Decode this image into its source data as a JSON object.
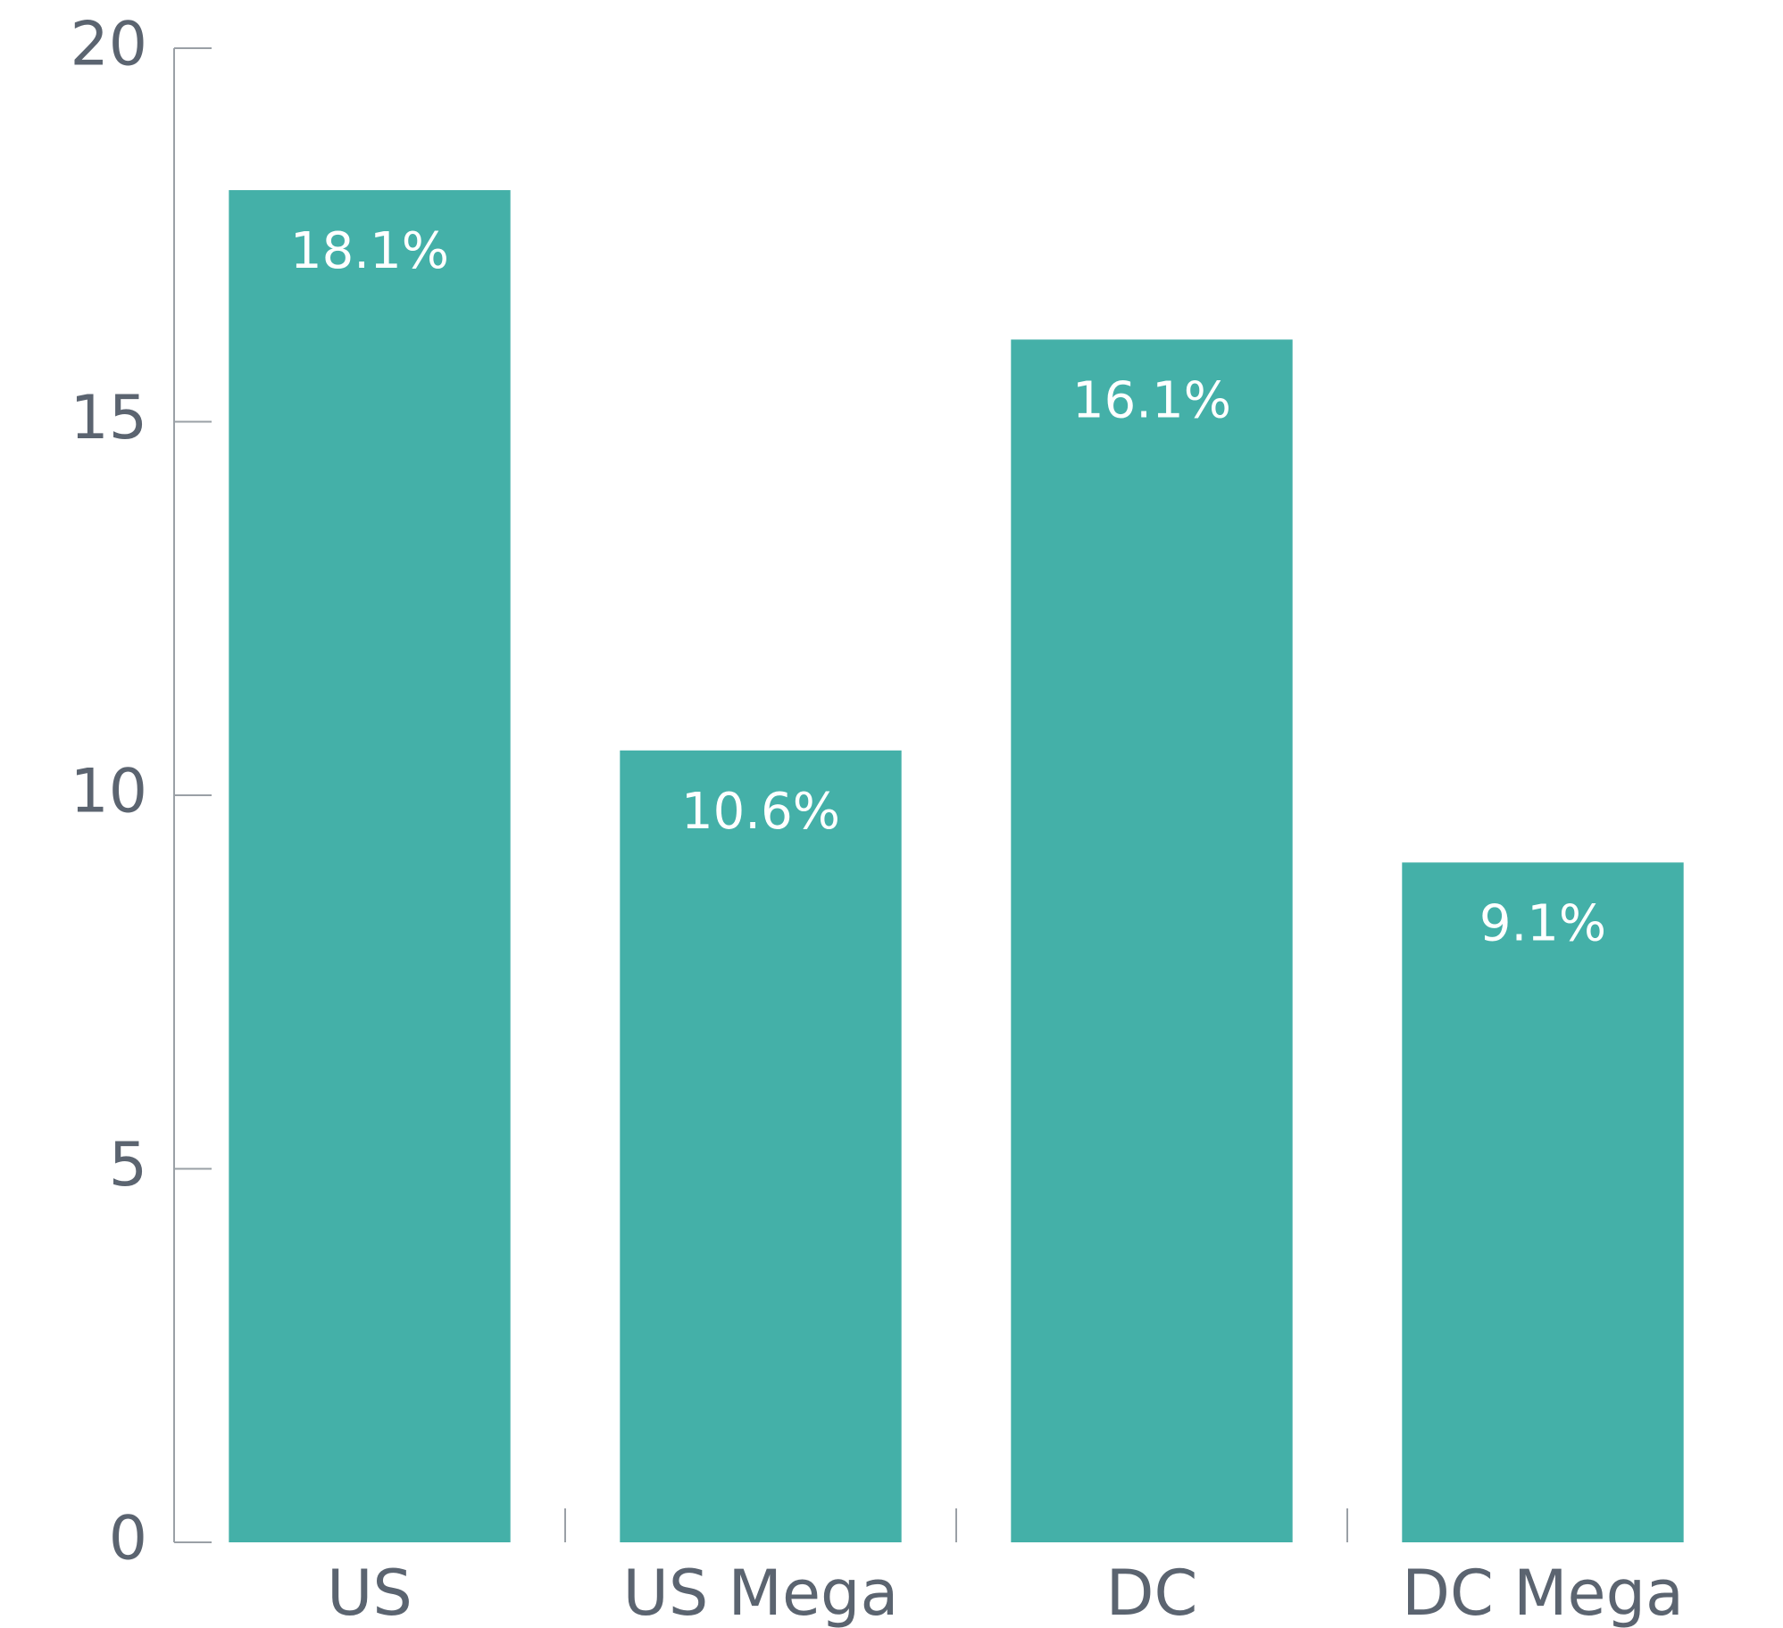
{
  "chart_data": {
    "type": "bar",
    "categories": [
      "US",
      "US Mega",
      "DC",
      "DC Mega"
    ],
    "values": [
      18.1,
      10.6,
      16.1,
      9.1
    ],
    "value_labels": [
      "18.1%",
      "10.6%",
      "16.1%",
      "9.1%"
    ],
    "color": "#44b0a8",
    "ylim": [
      0,
      20
    ],
    "yticks": [
      0,
      5,
      10,
      15,
      20
    ],
    "grid": false
  }
}
